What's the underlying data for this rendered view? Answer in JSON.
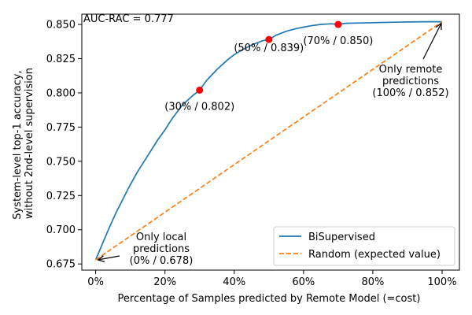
{
  "chart_data": {
    "type": "line",
    "xlabel": "Percentage of Samples predicted by Remote Model (=cost)",
    "ylabel_lines": [
      "System-level top-1 accuracy,",
      "without 2nd-level supervision"
    ],
    "xlim": [
      -4,
      105
    ],
    "ylim": [
      0.6705,
      0.8575
    ],
    "x_ticks": [
      0,
      20,
      40,
      60,
      80,
      100
    ],
    "x_tick_labels": [
      "0%",
      "20%",
      "40%",
      "60%",
      "80%",
      "100%"
    ],
    "y_ticks": [
      0.675,
      0.7,
      0.725,
      0.75,
      0.775,
      0.8,
      0.825,
      0.85
    ],
    "y_tick_labels": [
      "0.675",
      "0.700",
      "0.725",
      "0.750",
      "0.775",
      "0.800",
      "0.825",
      "0.850"
    ],
    "grid": false,
    "legend_position": "lower-right",
    "corner_text": "AUC-RAC = 0.777",
    "series": [
      {
        "name": "BiSupervised",
        "color": "#1f77b4",
        "style": "solid",
        "x": [
          0,
          2,
          4,
          6,
          8,
          10,
          12,
          15,
          18,
          20,
          22,
          25,
          28,
          30,
          32,
          35,
          38,
          40,
          42,
          45,
          48,
          50,
          52,
          55,
          58,
          60,
          62,
          65,
          68,
          70,
          72,
          75,
          80,
          85,
          90,
          95,
          100
        ],
        "y": [
          0.678,
          0.69,
          0.702,
          0.713,
          0.723,
          0.733,
          0.742,
          0.754,
          0.766,
          0.773,
          0.781,
          0.791,
          0.798,
          0.802,
          0.809,
          0.817,
          0.824,
          0.828,
          0.831,
          0.835,
          0.838,
          0.839,
          0.842,
          0.845,
          0.847,
          0.848,
          0.849,
          0.85,
          0.8505,
          0.85,
          0.8508,
          0.851,
          0.8513,
          0.8516,
          0.8518,
          0.852,
          0.852
        ]
      },
      {
        "name": "Random (expected value)",
        "color": "#ff7f0e",
        "style": "dashed",
        "x": [
          0,
          100
        ],
        "y": [
          0.678,
          0.852
        ]
      }
    ],
    "highlight_points": {
      "color": "#ff0000",
      "points": [
        {
          "x": 30,
          "y": 0.802,
          "label": "(30% / 0.802)"
        },
        {
          "x": 50,
          "y": 0.839,
          "label": "(50% / 0.839)"
        },
        {
          "x": 70,
          "y": 0.85,
          "label": "(70% / 0.850)"
        }
      ]
    },
    "annotations": [
      {
        "lines": [
          "Only local",
          "predictions",
          "(0% / 0.678)"
        ],
        "arrow_to": {
          "x": 0,
          "y": 0.678
        }
      },
      {
        "lines": [
          "Only remote",
          "predictions",
          "(100% / 0.852)"
        ],
        "arrow_to": {
          "x": 100,
          "y": 0.852
        }
      }
    ]
  }
}
